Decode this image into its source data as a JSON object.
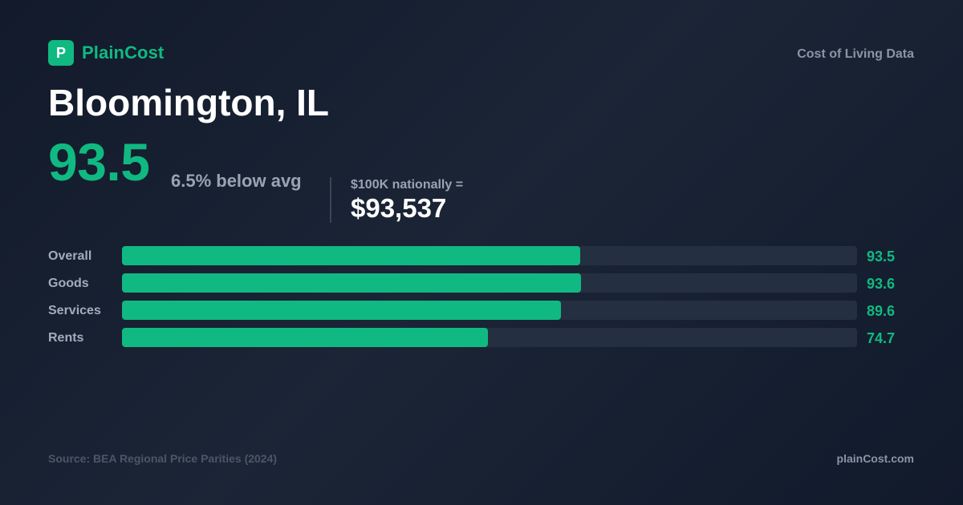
{
  "brand": {
    "logo_letter": "P",
    "name": "PlainCost",
    "accent_color": "#10b981",
    "tagline": "Cost of Living Data"
  },
  "city": {
    "name": "Bloomington, IL"
  },
  "summary": {
    "index": "93.5",
    "comparison": "6.5% below avg",
    "equivalent_label": "$100K nationally =",
    "equivalent_value": "$93,537"
  },
  "chart_data": {
    "type": "bar",
    "orientation": "horizontal",
    "categories": [
      "Overall",
      "Goods",
      "Services",
      "Rents"
    ],
    "values": [
      93.5,
      93.6,
      89.6,
      74.7
    ],
    "value_labels": [
      "93.5",
      "93.6",
      "89.6",
      "74.7"
    ],
    "xlim": [
      0,
      150
    ],
    "color": "#10b981",
    "track_color": "#243041",
    "grid": false
  },
  "footer": {
    "source": "Source: BEA Regional Price Parities (2024)",
    "site": "plainCost.com"
  }
}
